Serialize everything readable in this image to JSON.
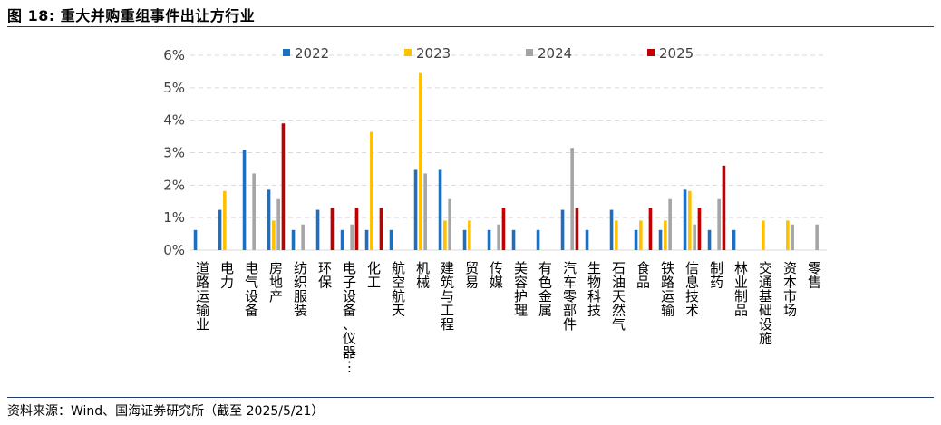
{
  "figure": {
    "title": "图 18:  重大并购重组事件出让方行业",
    "source": "资料来源：Wind、国海证券研究所（截至 2025/5/21）"
  },
  "chart_data": {
    "type": "bar",
    "title": "",
    "xlabel": "",
    "ylabel": "",
    "ylim": [
      0,
      6
    ],
    "yticks": [
      "0%",
      "1%",
      "2%",
      "3%",
      "4%",
      "5%",
      "6%"
    ],
    "grid": true,
    "legend_position": "top",
    "categories": [
      "道路运输业",
      "电力",
      "电气设备",
      "房地产",
      "纺织服装",
      "环保",
      "电子设备、仪器…",
      "化工",
      "航空航天",
      "机械",
      "建筑与工程",
      "贸易",
      "传媒",
      "美容护理",
      "有色金属",
      "汽车零部件",
      "生物科技",
      "石油天然气",
      "食品",
      "铁路运输",
      "信息技术",
      "制药",
      "林业制品",
      "交通基础设施",
      "资本市场",
      "零售"
    ],
    "series": [
      {
        "name": "2022",
        "color": "#1f6fc0",
        "values": [
          0.62,
          1.24,
          3.09,
          1.86,
          0.62,
          1.24,
          0.62,
          0.62,
          0.62,
          2.47,
          2.47,
          0.62,
          0.62,
          0.62,
          0.62,
          1.24,
          0.62,
          1.24,
          0.62,
          0.62,
          1.86,
          0.62,
          0.62,
          0,
          0,
          0
        ]
      },
      {
        "name": "2023",
        "color": "#ffc000",
        "values": [
          0,
          1.82,
          0,
          0.91,
          0,
          0,
          0,
          3.64,
          0,
          5.45,
          0.91,
          0.91,
          0,
          0,
          0,
          0,
          0,
          0.91,
          0.91,
          0.91,
          1.82,
          0,
          0,
          0.91,
          0.91,
          0
        ]
      },
      {
        "name": "2024",
        "color": "#a5a5a5",
        "values": [
          0,
          0,
          2.36,
          1.57,
          0.79,
          0,
          0.79,
          0,
          0,
          2.36,
          1.57,
          0,
          0.79,
          0,
          0,
          3.15,
          0,
          0,
          0,
          1.57,
          0.79,
          1.57,
          0,
          0,
          0.79,
          0.79
        ]
      },
      {
        "name": "2025",
        "color": "#c00000",
        "values": [
          0,
          0,
          0,
          3.9,
          0,
          1.3,
          1.3,
          1.3,
          0,
          0,
          0,
          0,
          1.3,
          0,
          0,
          1.3,
          0,
          0,
          1.3,
          0,
          1.3,
          2.6,
          0,
          0,
          0,
          0
        ]
      }
    ]
  }
}
